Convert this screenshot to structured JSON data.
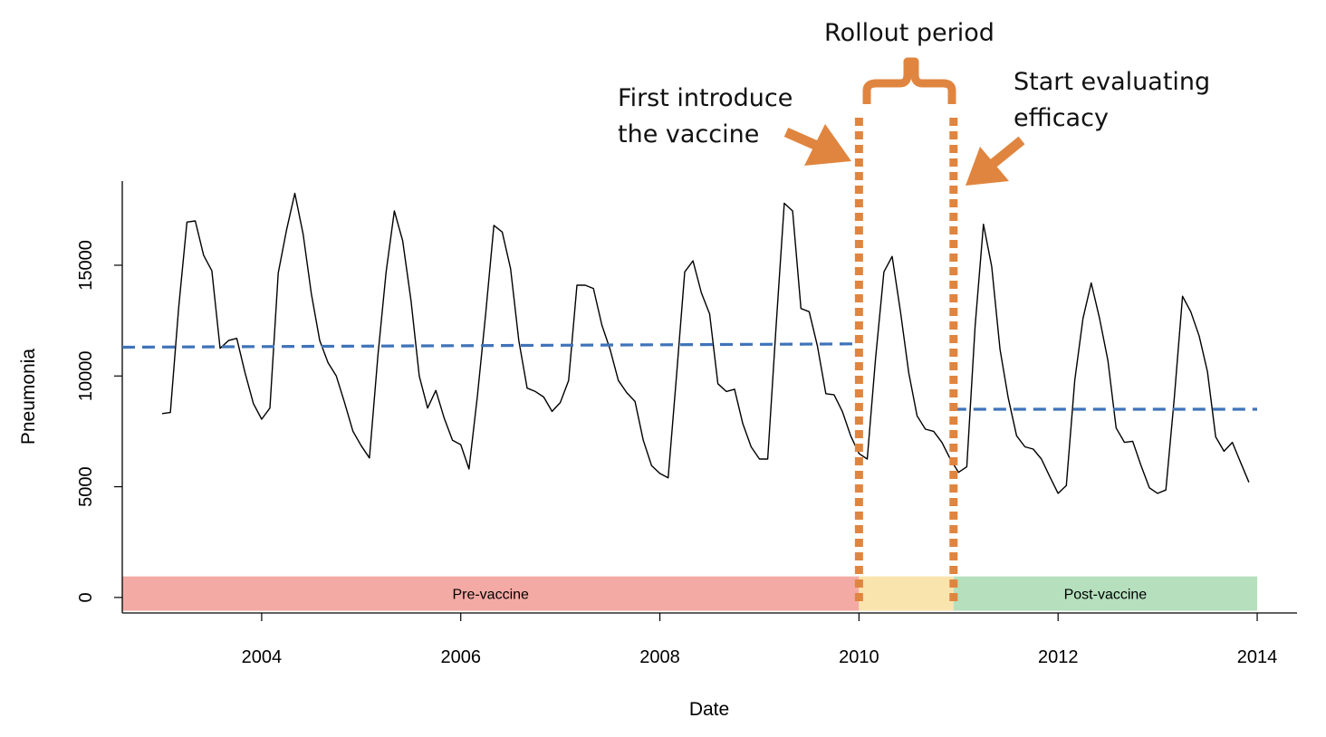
{
  "chart_data": {
    "type": "line",
    "xlabel": "Date",
    "ylabel": "Pneumonia",
    "xlim": [
      2002.6,
      2014.4
    ],
    "ylim": [
      -700,
      18800
    ],
    "x_ticks": [
      2004,
      2006,
      2008,
      2010,
      2012,
      2014
    ],
    "y_ticks": [
      0,
      5000,
      10000,
      15000
    ],
    "x_tick_labels": [
      "2004",
      "2006",
      "2008",
      "2010",
      "2012",
      "2014"
    ],
    "y_tick_labels": [
      "0",
      "5000",
      "10000",
      "15000"
    ],
    "grid": false,
    "series": [
      {
        "color": "#000000",
        "style": "solid",
        "x": [
          2003.0,
          2003.083,
          2003.167,
          2003.25,
          2003.333,
          2003.417,
          2003.5,
          2003.583,
          2003.667,
          2003.75,
          2003.833,
          2003.917,
          2004.0,
          2004.083,
          2004.167,
          2004.25,
          2004.333,
          2004.417,
          2004.5,
          2004.583,
          2004.667,
          2004.75,
          2004.833,
          2004.917,
          2005.0,
          2005.083,
          2005.167,
          2005.25,
          2005.333,
          2005.417,
          2005.5,
          2005.583,
          2005.667,
          2005.75,
          2005.833,
          2005.917,
          2006.0,
          2006.083,
          2006.167,
          2006.25,
          2006.333,
          2006.417,
          2006.5,
          2006.583,
          2006.667,
          2006.75,
          2006.833,
          2006.917,
          2007.0,
          2007.083,
          2007.167,
          2007.25,
          2007.333,
          2007.417,
          2007.5,
          2007.583,
          2007.667,
          2007.75,
          2007.833,
          2007.917,
          2008.0,
          2008.083,
          2008.167,
          2008.25,
          2008.333,
          2008.417,
          2008.5,
          2008.583,
          2008.667,
          2008.75,
          2008.833,
          2008.917,
          2009.0,
          2009.083,
          2009.167,
          2009.25,
          2009.333,
          2009.417,
          2009.5,
          2009.583,
          2009.667,
          2009.75,
          2009.833,
          2009.917,
          2010.0,
          2010.083,
          2010.167,
          2010.25,
          2010.333,
          2010.417,
          2010.5,
          2010.583,
          2010.667,
          2010.75,
          2010.833,
          2010.917,
          2011.0,
          2011.083,
          2011.167,
          2011.25,
          2011.333,
          2011.417,
          2011.5,
          2011.583,
          2011.667,
          2011.75,
          2011.833,
          2011.917,
          2012.0,
          2012.083,
          2012.167,
          2012.25,
          2012.333,
          2012.417,
          2012.5,
          2012.583,
          2012.667,
          2012.75,
          2012.833,
          2012.917,
          2013.0,
          2013.083,
          2013.167,
          2013.25,
          2013.333,
          2013.417,
          2013.5,
          2013.583,
          2013.667,
          2013.75,
          2013.833,
          2013.917
        ],
        "y": [
          8300,
          8350,
          13100,
          16950,
          17000,
          15450,
          14750,
          11250,
          11600,
          11700,
          10150,
          8750,
          8050,
          8550,
          14650,
          16600,
          18250,
          16400,
          13700,
          11600,
          10600,
          10000,
          8800,
          7500,
          6850,
          6300,
          10900,
          14700,
          17450,
          16100,
          13400,
          10000,
          8550,
          9350,
          8100,
          7100,
          6900,
          5800,
          9100,
          12800,
          16800,
          16500,
          14850,
          11600,
          9450,
          9300,
          9050,
          8400,
          8800,
          9800,
          14100,
          14100,
          13950,
          12300,
          11200,
          9800,
          9250,
          8850,
          7100,
          5950,
          5600,
          5400,
          10000,
          14700,
          15200,
          13750,
          12800,
          9650,
          9300,
          9400,
          7850,
          6800,
          6250,
          6250,
          12200,
          17800,
          17450,
          13050,
          12900,
          11350,
          9200,
          9150,
          8400,
          7300,
          6500,
          6250,
          10800,
          14700,
          15400,
          12900,
          10150,
          8200,
          7600,
          7500,
          7000,
          6250,
          5650,
          5900,
          12250,
          16850,
          14950,
          11200,
          9000,
          7300,
          6800,
          6700,
          6250,
          5450,
          4700,
          5050,
          9800,
          12600,
          14200,
          12600,
          10700,
          7650,
          7000,
          7050,
          5950,
          4950,
          4700,
          4850,
          9000,
          13600,
          12900,
          11800,
          10200,
          7250,
          6600,
          7000,
          6100,
          5200
        ]
      },
      {
        "color": "#3f73b9",
        "style": "dashed",
        "x": [
          2002.6,
          2010.0
        ],
        "y": [
          11300,
          11450
        ]
      },
      {
        "color": "#3f73b9",
        "style": "dashed",
        "x": [
          2010.95,
          2014.0
        ],
        "y": [
          8500,
          8500
        ]
      }
    ],
    "periods": [
      {
        "label": "Pre-vaccine",
        "x_start": 2002.6,
        "x_end": 2010.0,
        "color": "#f4aaa4"
      },
      {
        "label": "",
        "x_start": 2010.0,
        "x_end": 2010.95,
        "color": "#fae4ae"
      },
      {
        "label": "Post-vaccine",
        "x_start": 2010.95,
        "x_end": 2014.0,
        "color": "#b5dfbd"
      }
    ],
    "markers": [
      {
        "x": 2010.0,
        "color": "#e0853f"
      },
      {
        "x": 2010.95,
        "color": "#e0853f"
      }
    ],
    "annotations": {
      "rollout": "Rollout period",
      "first_line1": "First introduce",
      "first_line2": "the vaccine",
      "start_line1": "Start evaluating",
      "start_line2": "efficacy"
    }
  }
}
